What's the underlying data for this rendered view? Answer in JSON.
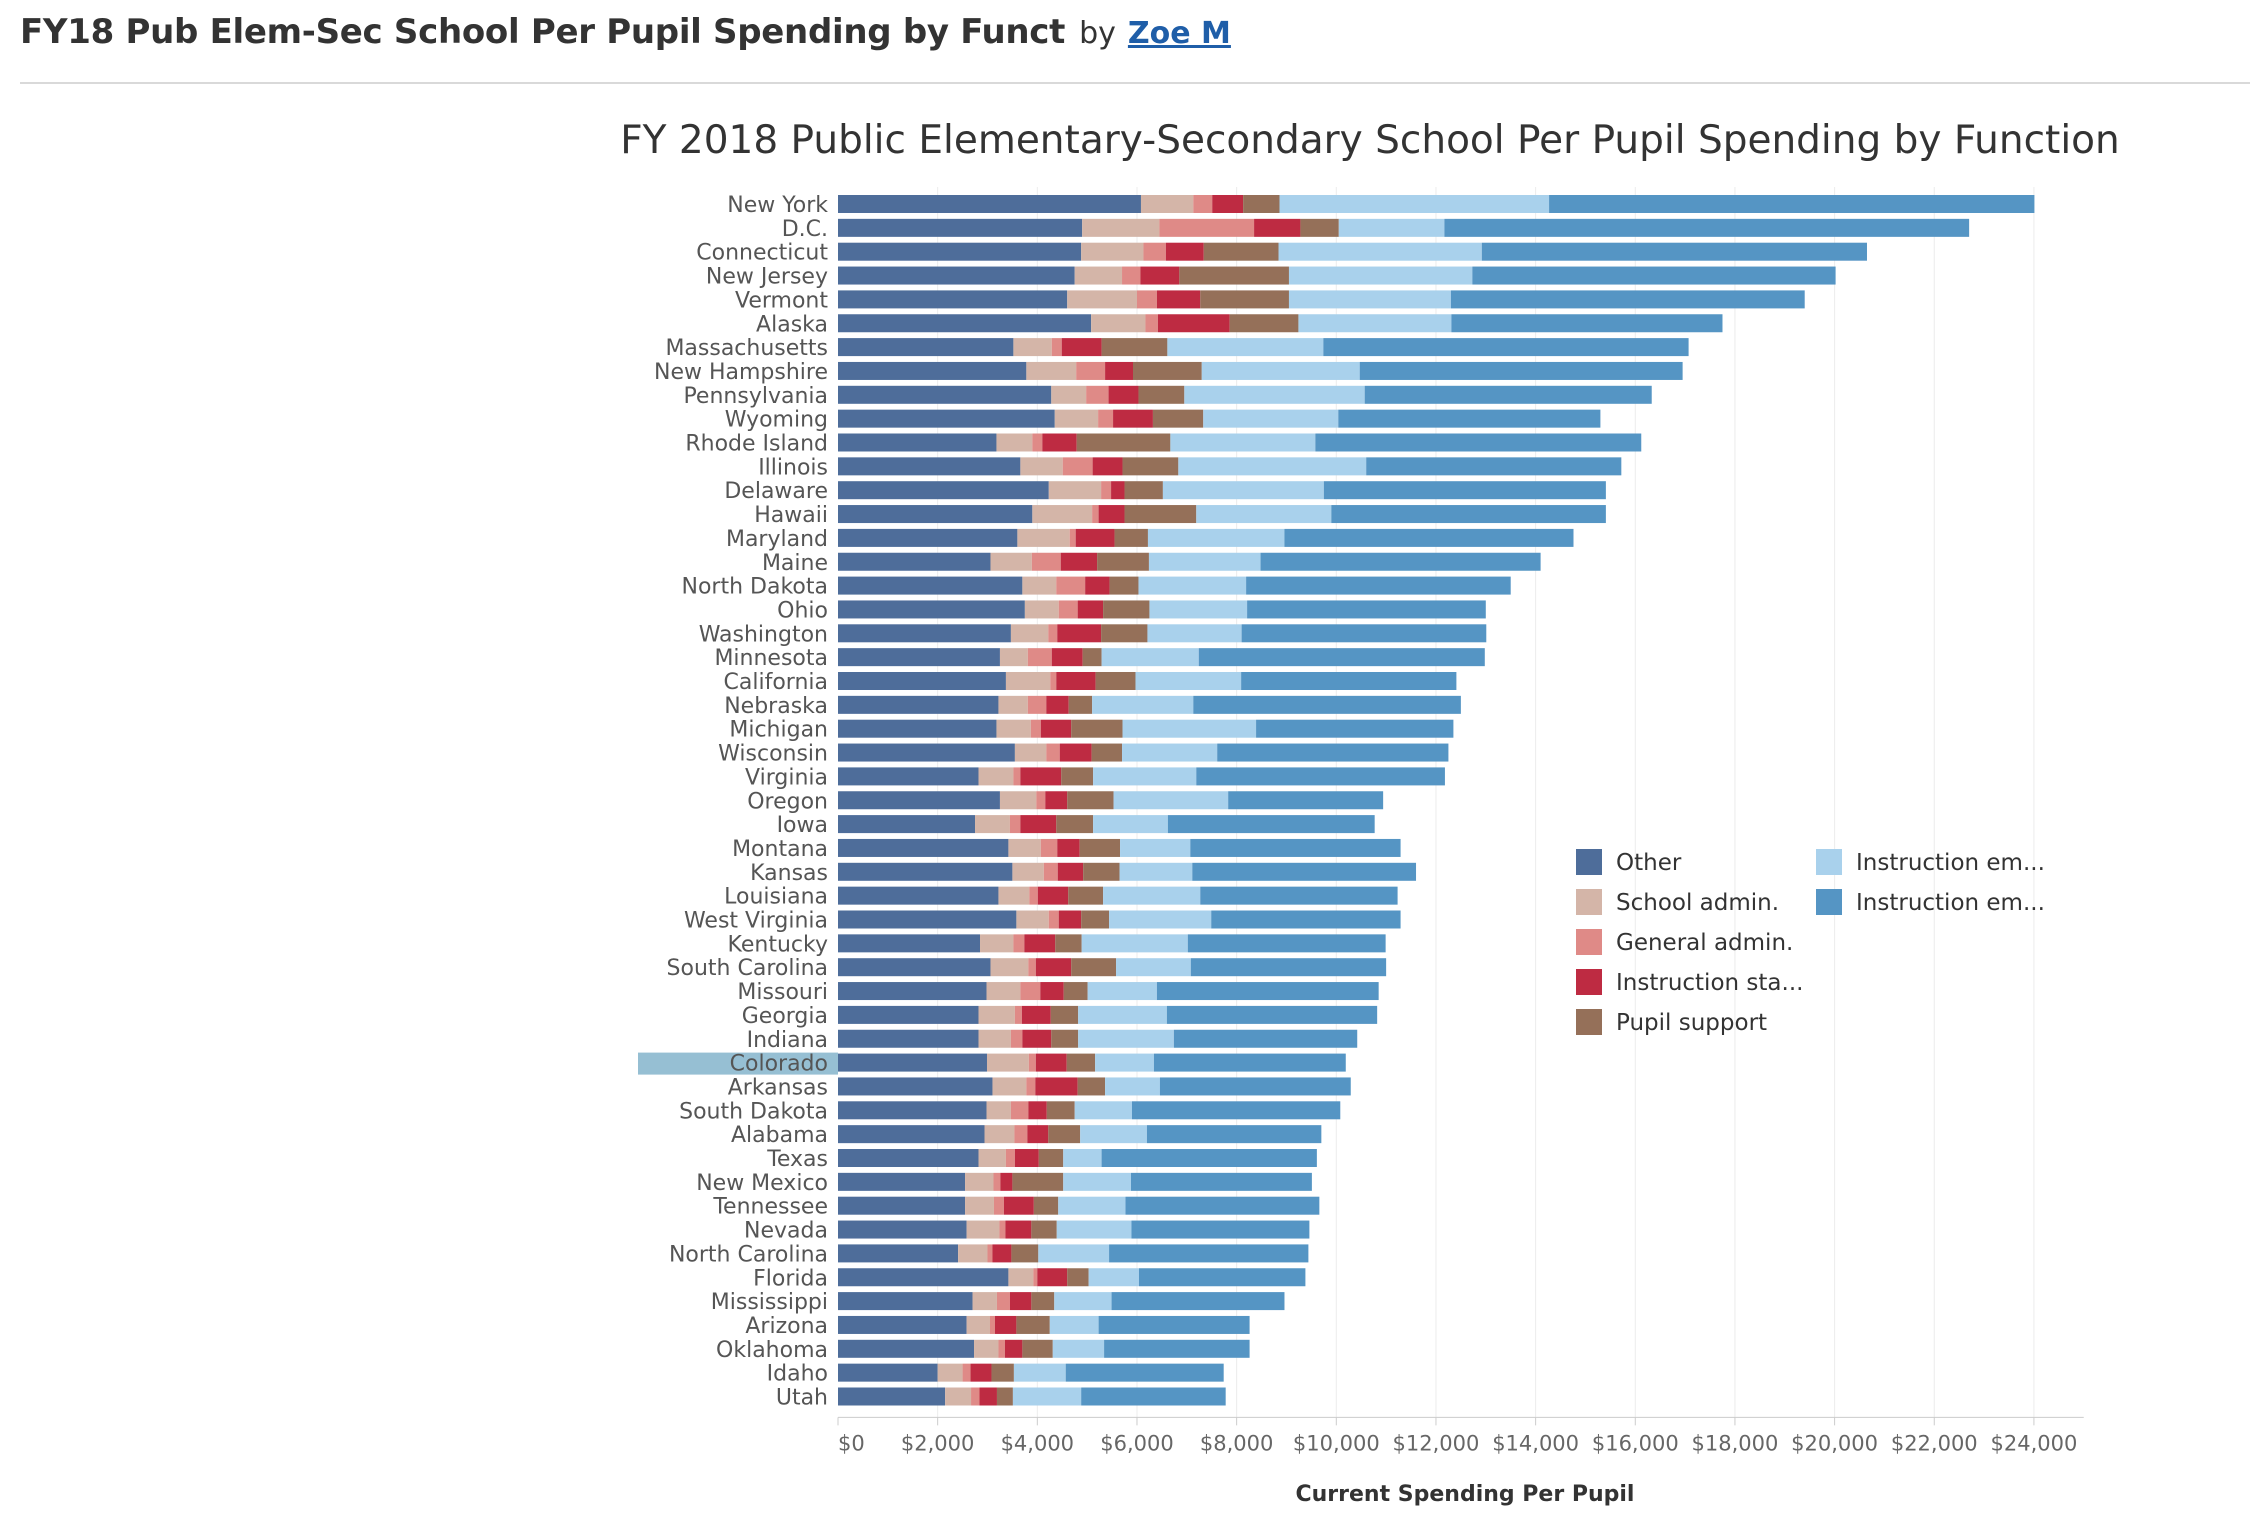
{
  "header": {
    "title": "FY18 Pub Elem-Sec School Per Pupil Spending by Funct",
    "by_label": "by",
    "author": "Zoe M"
  },
  "chart_data": {
    "type": "bar",
    "orientation": "horizontal",
    "stacked": true,
    "title": "FY 2018 Public Elementary-Secondary School Per Pupil Spending by Function",
    "xlabel": "Current Spending Per Pupil",
    "ylabel": "",
    "xlim": [
      0,
      25000
    ],
    "x_ticks": [
      "$0",
      "$2,000",
      "$4,000",
      "$6,000",
      "$8,000",
      "$10,000",
      "$12,000",
      "$14,000",
      "$16,000",
      "$18,000",
      "$20,000",
      "$22,000",
      "$24,000"
    ],
    "x_tick_values": [
      0,
      2000,
      4000,
      6000,
      8000,
      10000,
      12000,
      14000,
      16000,
      18000,
      20000,
      22000,
      24000
    ],
    "grid": true,
    "legend_position": "right",
    "highlighted_category": "Colorado",
    "highlight_color": "#96bfd3",
    "categories": [
      "New York",
      "D.C.",
      "Connecticut",
      "New Jersey",
      "Vermont",
      "Alaska",
      "Massachusetts",
      "New Hampshire",
      "Pennsylvania",
      "Wyoming",
      "Rhode Island",
      "Illinois",
      "Delaware",
      "Hawaii",
      "Maryland",
      "Maine",
      "North Dakota",
      "Ohio",
      "Washington",
      "Minnesota",
      "California",
      "Nebraska",
      "Michigan",
      "Wisconsin",
      "Virginia",
      "Oregon",
      "Iowa",
      "Montana",
      "Kansas",
      "Louisiana",
      "West Virginia",
      "Kentucky",
      "South Carolina",
      "Missouri",
      "Georgia",
      "Indiana",
      "Colorado",
      "Arkansas",
      "South Dakota",
      "Alabama",
      "Texas",
      "New Mexico",
      "Tennessee",
      "Nevada",
      "North Carolina",
      "Florida",
      "Mississippi",
      "Arizona",
      "Oklahoma",
      "Idaho",
      "Utah"
    ],
    "series": [
      {
        "name": "Other",
        "color": "#4e6d9a",
        "values": [
          6080,
          4900,
          4880,
          4750,
          4600,
          5080,
          3520,
          3780,
          4280,
          4350,
          3180,
          3660,
          4230,
          3900,
          3600,
          3060,
          3700,
          3750,
          3470,
          3250,
          3370,
          3220,
          3180,
          3550,
          2820,
          3250,
          2750,
          3420,
          3500,
          3220,
          3580,
          2850,
          3060,
          2980,
          2820,
          2820,
          2990,
          3100,
          2980,
          2940,
          2820,
          2550,
          2550,
          2580,
          2410,
          3420,
          2700,
          2580,
          2730,
          2000,
          2150
        ]
      },
      {
        "name": "School admin.",
        "color": "#d4b5a8",
        "values": [
          1050,
          1550,
          1250,
          950,
          1400,
          1090,
          770,
          1000,
          700,
          870,
          720,
          850,
          1050,
          1200,
          1050,
          830,
          680,
          680,
          750,
          560,
          890,
          590,
          690,
          630,
          700,
          730,
          700,
          650,
          630,
          620,
          650,
          670,
          760,
          680,
          730,
          650,
          840,
          680,
          490,
          600,
          550,
          570,
          580,
          660,
          590,
          500,
          490,
          470,
          490,
          500,
          520
        ]
      },
      {
        "name": "General admin.",
        "color": "#df8a87",
        "values": [
          380,
          1900,
          450,
          370,
          400,
          250,
          200,
          580,
          450,
          300,
          200,
          600,
          200,
          130,
          120,
          580,
          580,
          380,
          180,
          480,
          120,
          370,
          200,
          270,
          140,
          180,
          210,
          330,
          280,
          170,
          200,
          220,
          150,
          400,
          140,
          230,
          140,
          180,
          350,
          260,
          180,
          140,
          200,
          120,
          100,
          80,
          260,
          100,
          130,
          160,
          170
        ]
      },
      {
        "name": "Instruction sta...",
        "color": "#be2b42",
        "values": [
          620,
          930,
          760,
          780,
          870,
          1440,
          800,
          560,
          600,
          800,
          690,
          600,
          270,
          520,
          780,
          730,
          490,
          510,
          880,
          620,
          790,
          450,
          610,
          640,
          820,
          440,
          720,
          450,
          510,
          610,
          450,
          620,
          710,
          470,
          580,
          580,
          620,
          850,
          370,
          420,
          480,
          240,
          600,
          520,
          380,
          600,
          430,
          430,
          350,
          420,
          350
        ]
      },
      {
        "name": "Pupil support",
        "color": "#957059",
        "values": [
          730,
          770,
          1500,
          2200,
          1780,
          1380,
          1320,
          1380,
          920,
          1010,
          1880,
          1120,
          770,
          1440,
          670,
          1040,
          580,
          930,
          930,
          380,
          800,
          470,
          1030,
          610,
          640,
          930,
          740,
          810,
          730,
          700,
          560,
          530,
          900,
          480,
          550,
          540,
          570,
          550,
          560,
          640,
          490,
          1020,
          490,
          510,
          540,
          430,
          460,
          670,
          610,
          450,
          320
        ]
      },
      {
        "name": "Instruction em...",
        "color": "#a9d1ec",
        "values": [
          5410,
          2120,
          4080,
          3680,
          3250,
          3070,
          3130,
          3170,
          3620,
          2710,
          2910,
          3770,
          3230,
          2710,
          2740,
          2240,
          2160,
          1960,
          1890,
          1950,
          2120,
          2030,
          2680,
          1910,
          2070,
          2300,
          1500,
          1410,
          1460,
          1950,
          2050,
          2130,
          1500,
          1390,
          1780,
          1920,
          1180,
          1100,
          1150,
          1340,
          770,
          1360,
          1350,
          1500,
          1420,
          1010,
          1150,
          980,
          1030,
          1040,
          1370
        ]
      },
      {
        "name": "Instruction em...",
        "color": "#5595c4",
        "values": [
          9740,
          10530,
          7730,
          7290,
          7100,
          5440,
          7330,
          6480,
          5760,
          5260,
          6540,
          5120,
          5660,
          5510,
          5800,
          5620,
          5310,
          4790,
          4910,
          5740,
          4320,
          5370,
          3960,
          4640,
          4990,
          3110,
          4150,
          4220,
          4490,
          3960,
          3800,
          3970,
          3920,
          4450,
          4220,
          3680,
          3850,
          3830,
          4180,
          3500,
          4320,
          3630,
          3890,
          3570,
          4000,
          3340,
          3470,
          3030,
          2920,
          3170,
          2900
        ]
      }
    ]
  }
}
